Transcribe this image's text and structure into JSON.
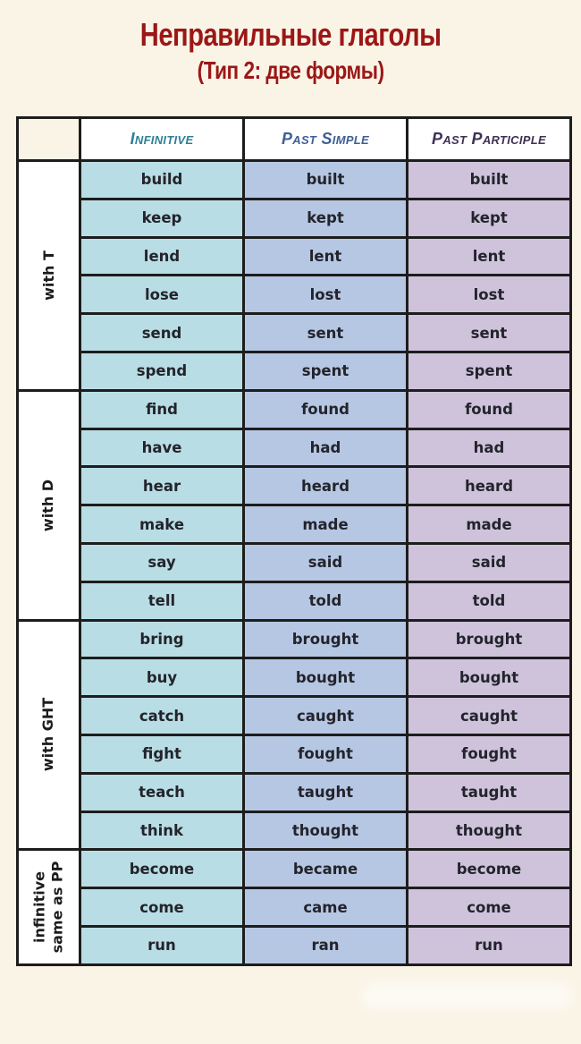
{
  "title": "Неправильные глаголы",
  "subtitle": "(Тип 2: две формы)",
  "colors": {
    "background": "#faf4e6",
    "title_red": "#9b1717",
    "border": "#1d1d1d",
    "infinitive_cell": "#b9dde4",
    "past_simple_cell": "#b6c7e3",
    "past_participle_cell": "#cfc3dc",
    "header_infinitive_text": "#2e7f99",
    "header_past_simple_text": "#3e5f96",
    "header_past_participle_text": "#3f3154"
  },
  "table": {
    "headers": [
      "Infinitive",
      "Past Simple",
      "Past Participle"
    ],
    "groups": [
      {
        "label": "with T",
        "rows": [
          [
            "build",
            "built",
            "built"
          ],
          [
            "keep",
            "kept",
            "kept"
          ],
          [
            "lend",
            "lent",
            "lent"
          ],
          [
            "lose",
            "lost",
            "lost"
          ],
          [
            "send",
            "sent",
            "sent"
          ],
          [
            "spend",
            "spent",
            "spent"
          ]
        ]
      },
      {
        "label": "with D",
        "rows": [
          [
            "find",
            "found",
            "found"
          ],
          [
            "have",
            "had",
            "had"
          ],
          [
            "hear",
            "heard",
            "heard"
          ],
          [
            "make",
            "made",
            "made"
          ],
          [
            "say",
            "said",
            "said"
          ],
          [
            "tell",
            "told",
            "told"
          ]
        ]
      },
      {
        "label": "with GHT",
        "rows": [
          [
            "bring",
            "brought",
            "brought"
          ],
          [
            "buy",
            "bought",
            "bought"
          ],
          [
            "catch",
            "caught",
            "caught"
          ],
          [
            "fight",
            "fought",
            "fought"
          ],
          [
            "teach",
            "taught",
            "taught"
          ],
          [
            "think",
            "thought",
            "thought"
          ]
        ]
      },
      {
        "label": "infinitive same as PP",
        "label_lines": [
          "infinitive",
          "same as PP"
        ],
        "rows": [
          [
            "become",
            "became",
            "become"
          ],
          [
            "come",
            "came",
            "come"
          ],
          [
            "run",
            "ran",
            "run"
          ]
        ]
      }
    ]
  }
}
